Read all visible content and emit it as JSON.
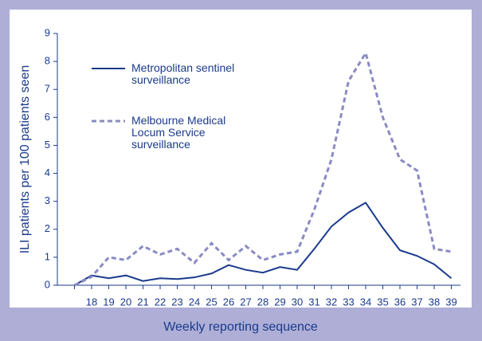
{
  "chart_data": {
    "type": "line",
    "y_label": "ILI patients per 100 patients seen",
    "x_label": "Weekly reporting sequence",
    "categories": [
      null,
      "18",
      "19",
      "20",
      "21",
      "22",
      "23",
      "24",
      "25",
      "26",
      "27",
      "28",
      "29",
      "30",
      "31",
      "32",
      "33",
      "34",
      "35",
      "36",
      "37",
      "38",
      "39"
    ],
    "series": [
      {
        "name": "Metropolitan sentinel surveillance",
        "color": "#1a3a8c",
        "dash": false,
        "values": [
          0,
          0.35,
          0.25,
          0.35,
          0.15,
          0.25,
          0.22,
          0.28,
          0.42,
          0.72,
          0.55,
          0.45,
          0.65,
          0.55,
          1.3,
          2.1,
          2.6,
          2.95,
          2.05,
          1.25,
          1.05,
          0.75,
          0.25
        ]
      },
      {
        "name": "Melbourne Medical Locum Service surveillance",
        "color": "#8a8ac4",
        "dash": true,
        "values": [
          0,
          0.3,
          1.0,
          0.9,
          1.4,
          1.1,
          1.3,
          0.8,
          1.5,
          0.9,
          1.4,
          0.9,
          1.1,
          1.2,
          2.7,
          4.5,
          7.3,
          8.3,
          6.0,
          4.5,
          4.1,
          1.3,
          1.2
        ]
      }
    ],
    "ylim": [
      0,
      9
    ],
    "yticks": [
      0,
      1,
      2,
      3,
      4,
      5,
      6,
      7,
      8,
      9
    ]
  }
}
